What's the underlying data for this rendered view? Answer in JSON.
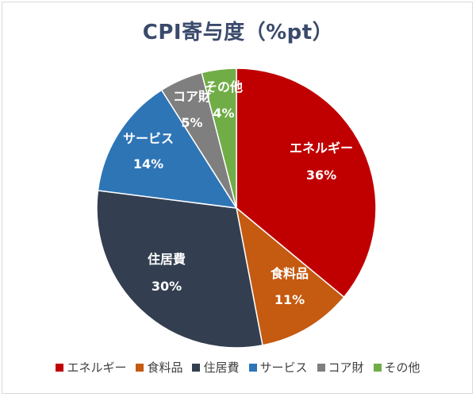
{
  "chart_data": {
    "type": "pie",
    "title": "CPI寄与度（%pt）",
    "start_angle_deg": 0,
    "direction": "clockwise",
    "legend_position": "bottom",
    "slices": [
      {
        "label": "エネルギー",
        "value": 36,
        "value_label": "36%",
        "color": "#c00000"
      },
      {
        "label": "食料品",
        "value": 11,
        "value_label": "11%",
        "color": "#c55a11"
      },
      {
        "label": "住居費",
        "value": 30,
        "value_label": "30%",
        "color": "#333f50"
      },
      {
        "label": "サービス",
        "value": 14,
        "value_label": "14%",
        "color": "#2e75b6"
      },
      {
        "label": "コア財",
        "value": 5,
        "value_label": "5%",
        "color": "#7f7f7f"
      },
      {
        "label": "その他",
        "value": 4,
        "value_label": "4%",
        "color": "#70ad47"
      }
    ]
  }
}
